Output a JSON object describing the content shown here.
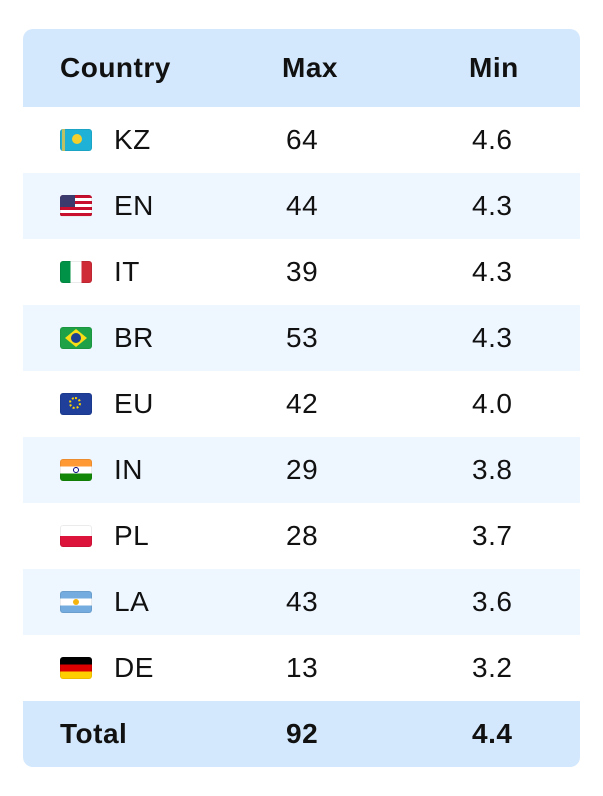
{
  "table": {
    "headers": {
      "country": "Country",
      "max": "Max",
      "min": "Min"
    },
    "rows": [
      {
        "flag": "kazakhstan-flag-icon",
        "code": "KZ",
        "max": "64",
        "min": "4.6"
      },
      {
        "flag": "us-flag-icon",
        "code": "EN",
        "max": "44",
        "min": "4.3"
      },
      {
        "flag": "italy-flag-icon",
        "code": "IT",
        "max": "39",
        "min": "4.3"
      },
      {
        "flag": "brazil-flag-icon",
        "code": "BR",
        "max": "53",
        "min": "4.3"
      },
      {
        "flag": "eu-flag-icon",
        "code": "EU",
        "max": "42",
        "min": "4.0"
      },
      {
        "flag": "india-flag-icon",
        "code": "IN",
        "max": "29",
        "min": "3.8"
      },
      {
        "flag": "poland-flag-icon",
        "code": "PL",
        "max": "28",
        "min": "3.7"
      },
      {
        "flag": "argentina-flag-icon",
        "code": "LA",
        "max": "43",
        "min": "3.6"
      },
      {
        "flag": "germany-flag-icon",
        "code": "DE",
        "max": "13",
        "min": "3.2"
      }
    ],
    "total": {
      "label": "Total",
      "max": "92",
      "min": "4.4"
    }
  },
  "colors": {
    "header_bg": "#d3e8fd",
    "alt_row_bg": "#eef6ff",
    "row_bg": "#ffffff",
    "text": "#111111"
  }
}
